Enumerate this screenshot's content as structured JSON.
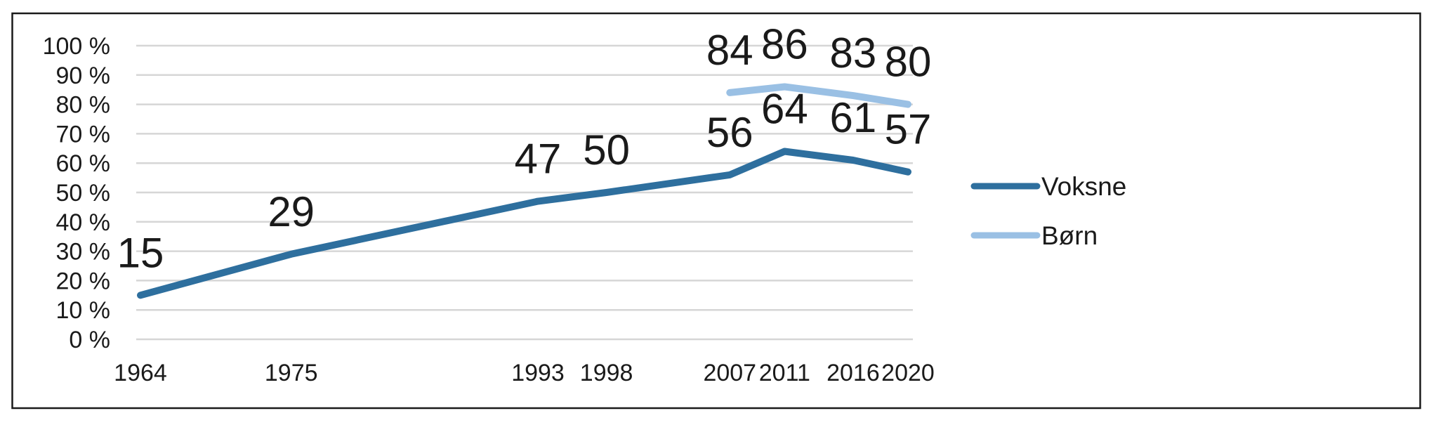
{
  "chart_data": {
    "type": "line",
    "title": "",
    "x": [
      1964,
      1975,
      1993,
      1998,
      2007,
      2011,
      2016,
      2020
    ],
    "x_tick_labels": [
      "1964",
      "1975",
      "1993",
      "1998",
      "2007",
      "2011",
      "2016",
      "2020"
    ],
    "y_tick_labels": [
      "0 %",
      "10 %",
      "20 %",
      "30 %",
      "40 %",
      "50 %",
      "60 %",
      "70 %",
      "80 %",
      "90 %",
      "100 %"
    ],
    "ylim": [
      0,
      100
    ],
    "y_tick_step": 10,
    "grid": true,
    "data_labels": true,
    "legend_position": "right",
    "series": [
      {
        "name": "Voksne",
        "color": "#2E6F9E",
        "values": [
          15,
          29,
          47,
          50,
          56,
          64,
          61,
          57
        ]
      },
      {
        "name": "Børn",
        "color": "#9AC0E4",
        "values": [
          null,
          null,
          null,
          null,
          84,
          86,
          83,
          80
        ]
      }
    ]
  },
  "legend": {
    "items": [
      {
        "label": "Voksne",
        "color": "#2E6F9E"
      },
      {
        "label": "Børn",
        "color": "#9AC0E4"
      }
    ]
  },
  "colors": {
    "grid": "#D6D6D6",
    "frame_border": "#1A1A1A",
    "text": "#1A1A1A",
    "background": "#FFFFFF"
  }
}
